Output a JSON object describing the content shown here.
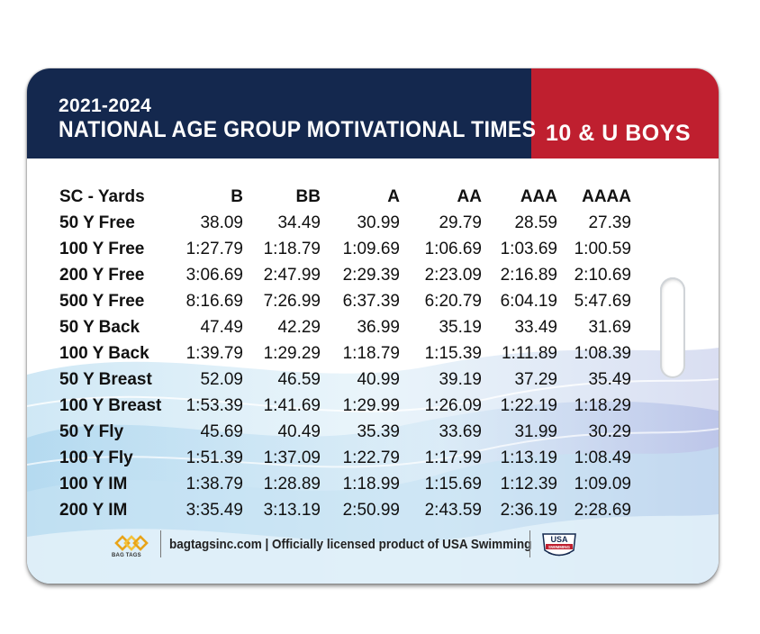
{
  "header": {
    "years": "2021-2024",
    "title": "NATIONAL AGE GROUP MOTIVATIONAL TIMES",
    "group": "10 & U BOYS",
    "colors": {
      "navy": "#14284e",
      "red": "#bf1f2f"
    }
  },
  "table": {
    "columns": [
      "SC - Yards",
      "B",
      "BB",
      "A",
      "AA",
      "AAA",
      "AAAA"
    ],
    "rows": [
      [
        "50 Y Free",
        "38.09",
        "34.49",
        "30.99",
        "29.79",
        "28.59",
        "27.39"
      ],
      [
        "100 Y Free",
        "1:27.79",
        "1:18.79",
        "1:09.69",
        "1:06.69",
        "1:03.69",
        "1:00.59"
      ],
      [
        "200 Y Free",
        "3:06.69",
        "2:47.99",
        "2:29.39",
        "2:23.09",
        "2:16.89",
        "2:10.69"
      ],
      [
        "500 Y Free",
        "8:16.69",
        "7:26.99",
        "6:37.39",
        "6:20.79",
        "6:04.19",
        "5:47.69"
      ],
      [
        "50 Y Back",
        "47.49",
        "42.29",
        "36.99",
        "35.19",
        "33.49",
        "31.69"
      ],
      [
        "100 Y Back",
        "1:39.79",
        "1:29.29",
        "1:18.79",
        "1:15.39",
        "1:11.89",
        "1:08.39"
      ],
      [
        "50 Y Breast",
        "52.09",
        "46.59",
        "40.99",
        "39.19",
        "37.29",
        "35.49"
      ],
      [
        "100 Y Breast",
        "1:53.39",
        "1:41.69",
        "1:29.99",
        "1:26.09",
        "1:22.19",
        "1:18.29"
      ],
      [
        "50 Y Fly",
        "45.69",
        "40.49",
        "35.39",
        "33.69",
        "31.99",
        "30.29"
      ],
      [
        "100 Y Fly",
        "1:51.39",
        "1:37.09",
        "1:22.79",
        "1:17.99",
        "1:13.19",
        "1:08.49"
      ],
      [
        "100 Y IM",
        "1:38.79",
        "1:28.89",
        "1:18.99",
        "1:15.69",
        "1:12.39",
        "1:09.09"
      ],
      [
        "200 Y IM",
        "3:35.49",
        "3:13.19",
        "2:50.99",
        "2:43.59",
        "2:36.19",
        "2:28.69"
      ]
    ]
  },
  "footer": {
    "brand_logo_text": "BAG TAGS",
    "text": "bagtagsinc.com | Officially licensed product of USA Swimming",
    "usa_logo_text": "USA SWIMMING",
    "brand_icon": "bag-tags-logo-icon",
    "usa_icon": "usa-swimming-logo-icon"
  }
}
